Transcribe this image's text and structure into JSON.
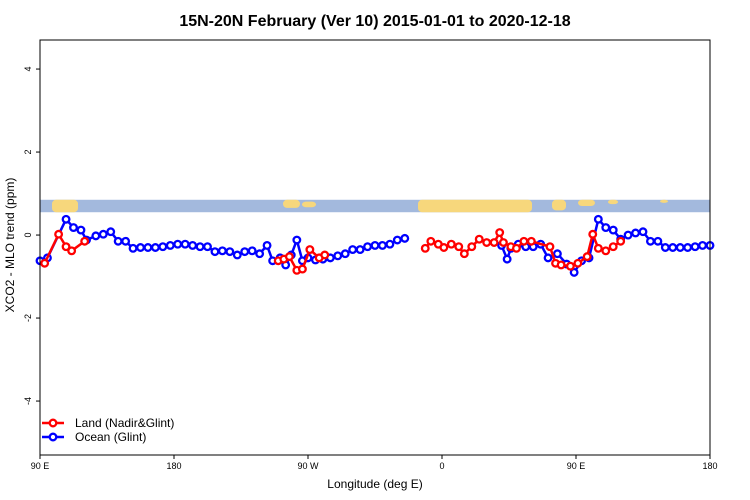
{
  "chart_data": {
    "type": "line",
    "title": "15N-20N February (Ver 10)   2015-01-01 to 2020-12-18",
    "xlabel": "Longitude (deg E)",
    "ylabel": "XCO2 - MLO trend (ppm)",
    "xlim": [
      90,
      450
    ],
    "ylim": [
      -5.3,
      4.7
    ],
    "x_ticks": [
      {
        "value": 90,
        "label": "90 E"
      },
      {
        "value": 162,
        "label": "180"
      },
      {
        "value": 234,
        "label": "90 W"
      },
      {
        "value": 306,
        "label": "0"
      },
      {
        "value": 378,
        "label": "90 E"
      },
      {
        "value": 450,
        "label": "180"
      }
    ],
    "y_ticks": [
      {
        "value": -4,
        "label": "-4"
      },
      {
        "value": -2,
        "label": "-2"
      },
      {
        "value": 0,
        "label": "0"
      },
      {
        "value": 2,
        "label": "2"
      },
      {
        "value": 4,
        "label": "4"
      }
    ],
    "legend": {
      "placement": "bottom-left"
    },
    "map_strip": {
      "y_top": 0.85,
      "y_bottom": 0.55,
      "ocean_color": "#a3b9dd",
      "land_color": "#f7d77c"
    },
    "series": [
      {
        "name": "Land (Nadir&Glint)",
        "color": "#ff0000",
        "points": [
          [
            92.5,
            -0.68
          ],
          [
            100,
            0.02
          ],
          [
            104,
            -0.28
          ],
          [
            107,
            -0.38
          ],
          [
            114,
            -0.15
          ],
          [
            218,
            -0.62
          ],
          [
            221,
            -0.58
          ],
          [
            224,
            -0.52
          ],
          [
            228,
            -0.85
          ],
          [
            231,
            -0.82
          ],
          [
            235,
            -0.35
          ],
          [
            240,
            -0.55
          ],
          [
            243,
            -0.48
          ],
          [
            297,
            -0.32
          ],
          [
            300,
            -0.15
          ],
          [
            304,
            -0.22
          ],
          [
            307,
            -0.3
          ],
          [
            311,
            -0.22
          ],
          [
            315,
            -0.28
          ],
          [
            318,
            -0.45
          ],
          [
            322,
            -0.28
          ],
          [
            326,
            -0.1
          ],
          [
            330,
            -0.18
          ],
          [
            334,
            -0.18
          ],
          [
            337,
            0.06
          ],
          [
            339,
            -0.18
          ],
          [
            343,
            -0.28
          ],
          [
            346,
            -0.32
          ],
          [
            350,
            -0.15
          ],
          [
            354,
            -0.15
          ],
          [
            364,
            -0.28
          ],
          [
            367,
            -0.68
          ],
          [
            370,
            -0.72
          ],
          [
            375,
            -0.75
          ],
          [
            379,
            -0.68
          ],
          [
            384,
            -0.52
          ],
          [
            387,
            0.02
          ],
          [
            390,
            -0.32
          ],
          [
            394,
            -0.38
          ],
          [
            398,
            -0.28
          ],
          [
            402,
            -0.15
          ]
        ]
      },
      {
        "name": "Ocean (Glint)",
        "color": "#0000ff",
        "points": [
          [
            90,
            -0.62
          ],
          [
            94,
            -0.55
          ],
          [
            104,
            0.38
          ],
          [
            108,
            0.18
          ],
          [
            112,
            0.12
          ],
          [
            115,
            -0.12
          ],
          [
            120,
            -0.02
          ],
          [
            124,
            0.02
          ],
          [
            128,
            0.08
          ],
          [
            132,
            -0.15
          ],
          [
            136,
            -0.15
          ],
          [
            140,
            -0.32
          ],
          [
            144,
            -0.3
          ],
          [
            148,
            -0.3
          ],
          [
            152,
            -0.3
          ],
          [
            156,
            -0.28
          ],
          [
            160,
            -0.25
          ],
          [
            164,
            -0.22
          ],
          [
            168,
            -0.22
          ],
          [
            172,
            -0.25
          ],
          [
            176,
            -0.28
          ],
          [
            180,
            -0.28
          ],
          [
            184,
            -0.4
          ],
          [
            188,
            -0.38
          ],
          [
            192,
            -0.4
          ],
          [
            196,
            -0.48
          ],
          [
            200,
            -0.4
          ],
          [
            204,
            -0.38
          ],
          [
            208,
            -0.45
          ],
          [
            212,
            -0.25
          ],
          [
            215,
            -0.62
          ],
          [
            219,
            -0.55
          ],
          [
            222,
            -0.72
          ],
          [
            225,
            -0.48
          ],
          [
            228,
            -0.12
          ],
          [
            231,
            -0.62
          ],
          [
            234,
            -0.55
          ],
          [
            238,
            -0.6
          ],
          [
            242,
            -0.58
          ],
          [
            246,
            -0.55
          ],
          [
            250,
            -0.5
          ],
          [
            254,
            -0.45
          ],
          [
            258,
            -0.35
          ],
          [
            262,
            -0.35
          ],
          [
            266,
            -0.28
          ],
          [
            270,
            -0.25
          ],
          [
            274,
            -0.25
          ],
          [
            278,
            -0.22
          ],
          [
            282,
            -0.12
          ],
          [
            286,
            -0.08
          ],
          [
            338,
            -0.25
          ],
          [
            341,
            -0.58
          ],
          [
            343,
            -0.32
          ],
          [
            347,
            -0.22
          ],
          [
            351,
            -0.28
          ],
          [
            355,
            -0.28
          ],
          [
            359,
            -0.22
          ],
          [
            363,
            -0.55
          ],
          [
            368,
            -0.45
          ],
          [
            373,
            -0.7
          ],
          [
            377,
            -0.9
          ],
          [
            381,
            -0.62
          ],
          [
            385,
            -0.55
          ],
          [
            390,
            0.38
          ],
          [
            394,
            0.18
          ],
          [
            398,
            0.12
          ],
          [
            402,
            -0.1
          ],
          [
            406,
            0.0
          ],
          [
            410,
            0.05
          ],
          [
            414,
            0.08
          ],
          [
            418,
            -0.15
          ],
          [
            422,
            -0.15
          ],
          [
            426,
            -0.3
          ],
          [
            430,
            -0.3
          ],
          [
            434,
            -0.3
          ],
          [
            438,
            -0.3
          ],
          [
            442,
            -0.28
          ],
          [
            446,
            -0.25
          ],
          [
            450,
            -0.25
          ]
        ]
      }
    ]
  }
}
